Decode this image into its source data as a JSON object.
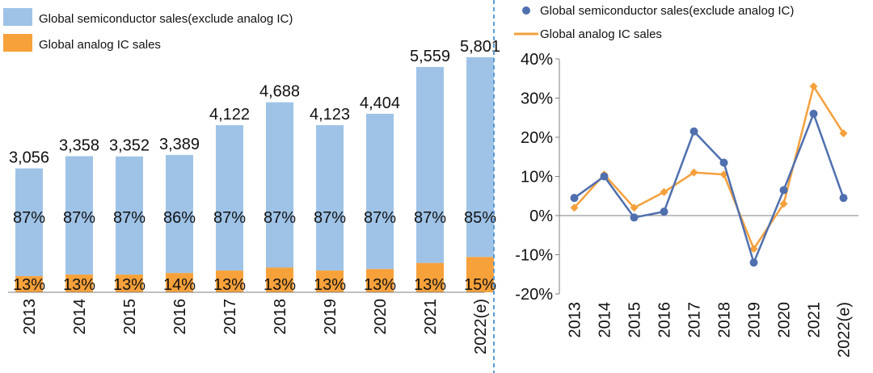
{
  "colors": {
    "semi": "#9FC3E7",
    "analog": "#F7A13A",
    "semi_line": "#4F6FAE",
    "analog_line": "#F5A03C",
    "divider": "#5B9BD5",
    "axis": "#7f7f7f"
  },
  "chart_data": [
    {
      "type": "bar",
      "stacked": true,
      "categories": [
        "2013",
        "2014",
        "2015",
        "2016",
        "2017",
        "2018",
        "2019",
        "2020",
        "2021",
        "2022(e)"
      ],
      "totals": [
        "3,056",
        "3,358",
        "3,352",
        "3,389",
        "4,122",
        "4,688",
        "4,123",
        "4,404",
        "5,559",
        "5,801"
      ],
      "total_values": [
        3056,
        3358,
        3352,
        3389,
        4122,
        4688,
        4123,
        4404,
        5559,
        5801
      ],
      "series": [
        {
          "name": "Global semiconductor sales(exclude analog IC)",
          "share_values": [
            87,
            87,
            87,
            86,
            87,
            87,
            87,
            87,
            87,
            85
          ],
          "labels": [
            "87%",
            "87%",
            "87%",
            "86%",
            "87%",
            "87%",
            "87%",
            "87%",
            "87%",
            "85%"
          ]
        },
        {
          "name": "Global analog IC sales",
          "share_values": [
            13,
            13,
            13,
            14,
            13,
            13,
            13,
            13,
            13,
            15
          ],
          "labels": [
            "13%",
            "13%",
            "13%",
            "14%",
            "13%",
            "13%",
            "13%",
            "13%",
            "13%",
            "15%"
          ]
        }
      ],
      "legend_position": "top-left"
    },
    {
      "type": "line",
      "categories": [
        "2013",
        "2014",
        "2015",
        "2016",
        "2017",
        "2018",
        "2019",
        "2020",
        "2021",
        "2022(e)"
      ],
      "series": [
        {
          "name": "Global semiconductor sales(exclude analog IC)",
          "marker": "circle",
          "values": [
            4.5,
            10,
            -0.5,
            1,
            21.5,
            13.5,
            -12,
            6.5,
            26,
            4.5
          ]
        },
        {
          "name": "Global analog IC sales",
          "marker": "diamond",
          "values": [
            2,
            10.5,
            2,
            6,
            11,
            10.5,
            -8.5,
            3,
            33,
            21
          ]
        }
      ],
      "yticks": [
        "40%",
        "30%",
        "20%",
        "10%",
        "0%",
        "-10%",
        "-20%"
      ],
      "ytick_values": [
        40,
        30,
        20,
        10,
        0,
        -10,
        -20
      ],
      "ylim": [
        -20,
        40
      ],
      "legend_position": "top"
    }
  ]
}
